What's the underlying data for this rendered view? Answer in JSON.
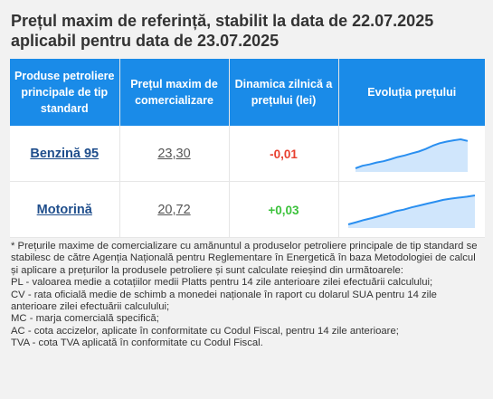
{
  "title": "Prețul maxim de referință, stabilit la data de 22.07.2025 aplicabil pentru data de 23.07.2025",
  "table": {
    "headers": [
      "Produse petroliere principale de tip standard",
      "Prețul maxim de comercializare",
      "Dinamica zilnică a prețului (lei)",
      "Evoluția prețului"
    ],
    "rows": [
      {
        "product": "Benzină 95",
        "price": "23,30",
        "change": "-0,01",
        "trend": [
          0.1,
          0.18,
          0.22,
          0.28,
          0.32,
          0.38,
          0.45,
          0.5,
          0.56,
          0.62,
          0.7,
          0.8,
          0.88,
          0.93,
          0.97,
          1.0,
          0.95
        ]
      },
      {
        "product": "Motorină",
        "price": "20,72",
        "change": "+0,03",
        "trend": [
          0.08,
          0.15,
          0.22,
          0.28,
          0.35,
          0.42,
          0.5,
          0.55,
          0.62,
          0.68,
          0.74,
          0.8,
          0.86,
          0.9,
          0.93,
          0.96,
          1.0
        ]
      }
    ]
  },
  "colors": {
    "header_bg": "#1a8be8",
    "negative": "#e8402f",
    "positive": "#3cc23c",
    "sparkline": "#2a8ff0"
  },
  "notes": [
    "* Prețurile maxime de comercializare cu amănuntul a produselor petroliere principale de tip standard se stabilesc de către Agenția Națională pentru Reglementare în Energetică în baza Metodologiei de calcul și aplicare a prețurilor la produsele petroliere și sunt calculate reieșind din următoarele:",
    "PL - valoarea medie a cotațiilor medii Platts pentru 14 zile anterioare zilei efectuării calculului;",
    "CV - rata oficială medie de schimb a monedei naționale în raport cu dolarul SUA pentru 14 zile anterioare zilei efectuării calculului;",
    "MC - marja comercială specifică;",
    "AC - cota accizelor, aplicate în conformitate cu Codul Fiscal, pentru 14 zile anterioare;",
    "TVA - cota TVA aplicată în conformitate cu Codul Fiscal."
  ]
}
